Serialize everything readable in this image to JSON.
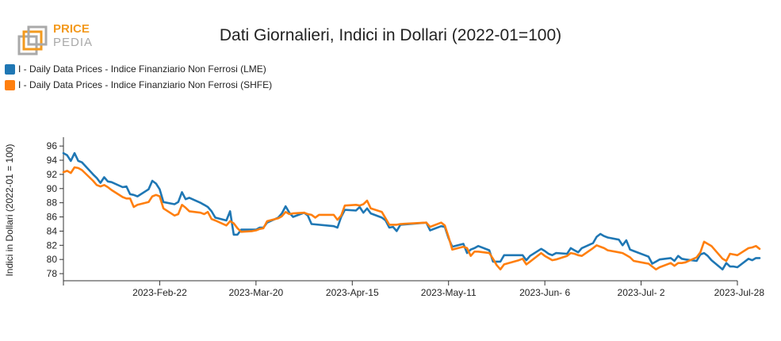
{
  "logo": {
    "line1": "PRICE",
    "line2": "PEDIA"
  },
  "colors": {
    "lme": "#1f77b4",
    "shfe": "#ff7f0e",
    "logo_orange": "#f39a1e",
    "logo_gray": "#a9a9a9"
  },
  "chart_data": {
    "type": "line",
    "title": "Dati Giornalieri, Indici in Dollari (2022-01=100)",
    "ylabel": "Indici in Dollari (2022-01 = 100)",
    "xlabel": "",
    "ylim": [
      77,
      96.8
    ],
    "yticks": [
      78,
      80,
      82,
      84,
      86,
      88,
      90,
      92,
      94,
      96
    ],
    "x_range": [
      "2023-01-27",
      "2023-07-28"
    ],
    "xticks": [
      {
        "date": "2023-02-22",
        "label": "2023-Feb-22"
      },
      {
        "date": "2023-03-20",
        "label": "2023-Mar-20"
      },
      {
        "date": "2023-04-15",
        "label": "2023-Apr-15"
      },
      {
        "date": "2023-05-11",
        "label": "2023-May-11"
      },
      {
        "date": "2023-06-06",
        "label": "2023-Jun- 6"
      },
      {
        "date": "2023-07-02",
        "label": "2023-Jul- 2"
      },
      {
        "date": "2023-07-28",
        "label": "2023-Jul-28"
      }
    ],
    "legend_position": "top-left",
    "series": [
      {
        "name": "I - Daily Data Prices - Indice Finanziario Non Ferrosi (LME)",
        "color": "#1f77b4",
        "points": [
          [
            "2023-01-27",
            95.0
          ],
          [
            "2023-01-28",
            94.7
          ],
          [
            "2023-01-29",
            93.9
          ],
          [
            "2023-01-30",
            95.0
          ],
          [
            "2023-01-31",
            93.9
          ],
          [
            "2023-02-01",
            93.7
          ],
          [
            "2023-02-04",
            92.0
          ],
          [
            "2023-02-05",
            91.5
          ],
          [
            "2023-02-06",
            90.8
          ],
          [
            "2023-02-07",
            91.6
          ],
          [
            "2023-02-08",
            91.0
          ],
          [
            "2023-02-09",
            90.9
          ],
          [
            "2023-02-12",
            90.2
          ],
          [
            "2023-02-13",
            90.3
          ],
          [
            "2023-02-14",
            89.2
          ],
          [
            "2023-02-15",
            89.1
          ],
          [
            "2023-02-16",
            88.9
          ],
          [
            "2023-02-19",
            89.9
          ],
          [
            "2023-02-20",
            91.1
          ],
          [
            "2023-02-21",
            90.7
          ],
          [
            "2023-02-22",
            89.9
          ],
          [
            "2023-02-23",
            88.1
          ],
          [
            "2023-02-26",
            87.8
          ],
          [
            "2023-02-27",
            88.1
          ],
          [
            "2023-02-28",
            89.5
          ],
          [
            "2023-03-01",
            88.5
          ],
          [
            "2023-03-02",
            88.7
          ],
          [
            "2023-03-05",
            88.0
          ],
          [
            "2023-03-06",
            87.7
          ],
          [
            "2023-03-07",
            87.4
          ],
          [
            "2023-03-08",
            86.8
          ],
          [
            "2023-03-09",
            85.9
          ],
          [
            "2023-03-12",
            85.5
          ],
          [
            "2023-03-13",
            86.8
          ],
          [
            "2023-03-14",
            83.5
          ],
          [
            "2023-03-15",
            83.5
          ],
          [
            "2023-03-16",
            84.2
          ],
          [
            "2023-03-19",
            84.2
          ],
          [
            "2023-03-20",
            84.2
          ],
          [
            "2023-03-21",
            84.5
          ],
          [
            "2023-03-22",
            84.5
          ],
          [
            "2023-03-23",
            85.2
          ],
          [
            "2023-03-26",
            85.9
          ],
          [
            "2023-03-27",
            86.5
          ],
          [
            "2023-03-28",
            87.5
          ],
          [
            "2023-03-29",
            86.6
          ],
          [
            "2023-03-30",
            86.0
          ],
          [
            "2023-04-02",
            86.6
          ],
          [
            "2023-04-03",
            86.2
          ],
          [
            "2023-04-04",
            85.0
          ],
          [
            "2023-04-10",
            84.7
          ],
          [
            "2023-04-11",
            84.5
          ],
          [
            "2023-04-12",
            86.0
          ],
          [
            "2023-04-13",
            87.0
          ],
          [
            "2023-04-16",
            86.9
          ],
          [
            "2023-04-17",
            87.4
          ],
          [
            "2023-04-18",
            86.6
          ],
          [
            "2023-04-19",
            87.2
          ],
          [
            "2023-04-20",
            86.5
          ],
          [
            "2023-04-23",
            85.9
          ],
          [
            "2023-04-24",
            85.5
          ],
          [
            "2023-04-25",
            84.5
          ],
          [
            "2023-04-26",
            84.6
          ],
          [
            "2023-04-27",
            84.0
          ],
          [
            "2023-04-28",
            84.9
          ],
          [
            "2023-05-05",
            85.2
          ],
          [
            "2023-05-06",
            84.1
          ],
          [
            "2023-05-09",
            84.7
          ],
          [
            "2023-05-10",
            84.6
          ],
          [
            "2023-05-11",
            83.0
          ],
          [
            "2023-05-12",
            81.8
          ],
          [
            "2023-05-15",
            82.2
          ],
          [
            "2023-05-16",
            80.9
          ],
          [
            "2023-05-17",
            81.4
          ],
          [
            "2023-05-18",
            81.6
          ],
          [
            "2023-05-19",
            81.9
          ],
          [
            "2023-05-22",
            81.3
          ],
          [
            "2023-05-23",
            79.7
          ],
          [
            "2023-05-24",
            79.7
          ],
          [
            "2023-05-25",
            79.7
          ],
          [
            "2023-05-26",
            80.6
          ],
          [
            "2023-05-30",
            80.6
          ],
          [
            "2023-05-31",
            80.6
          ],
          [
            "2023-06-01",
            79.9
          ],
          [
            "2023-06-02",
            80.5
          ],
          [
            "2023-06-05",
            81.5
          ],
          [
            "2023-06-06",
            81.2
          ],
          [
            "2023-06-07",
            80.8
          ],
          [
            "2023-06-08",
            80.6
          ],
          [
            "2023-06-09",
            80.9
          ],
          [
            "2023-06-12",
            80.8
          ],
          [
            "2023-06-13",
            81.6
          ],
          [
            "2023-06-14",
            81.3
          ],
          [
            "2023-06-15",
            81.0
          ],
          [
            "2023-06-16",
            81.6
          ],
          [
            "2023-06-19",
            82.3
          ],
          [
            "2023-06-20",
            83.2
          ],
          [
            "2023-06-21",
            83.6
          ],
          [
            "2023-06-22",
            83.3
          ],
          [
            "2023-06-23",
            83.1
          ],
          [
            "2023-06-26",
            82.8
          ],
          [
            "2023-06-27",
            82.0
          ],
          [
            "2023-06-28",
            82.7
          ],
          [
            "2023-06-29",
            81.4
          ],
          [
            "2023-06-30",
            81.2
          ],
          [
            "2023-07-03",
            80.6
          ],
          [
            "2023-07-04",
            80.4
          ],
          [
            "2023-07-05",
            79.4
          ],
          [
            "2023-07-06",
            79.7
          ],
          [
            "2023-07-07",
            80.0
          ],
          [
            "2023-07-10",
            80.2
          ],
          [
            "2023-07-11",
            79.8
          ],
          [
            "2023-07-12",
            80.5
          ],
          [
            "2023-07-13",
            80.1
          ],
          [
            "2023-07-14",
            80.0
          ],
          [
            "2023-07-17",
            79.8
          ],
          [
            "2023-07-18",
            80.7
          ],
          [
            "2023-07-19",
            80.9
          ],
          [
            "2023-07-20",
            80.5
          ],
          [
            "2023-07-21",
            79.9
          ],
          [
            "2023-07-24",
            78.6
          ],
          [
            "2023-07-25",
            79.5
          ],
          [
            "2023-07-26",
            79.0
          ],
          [
            "2023-07-27",
            79.0
          ],
          [
            "2023-07-28",
            78.9
          ],
          [
            "2023-07-31",
            80.1
          ],
          [
            "2023-08-01",
            79.9
          ],
          [
            "2023-08-02",
            80.2
          ],
          [
            "2023-08-03",
            80.2
          ]
        ]
      },
      {
        "name": "I - Daily Data Prices - Indice Finanziario Non Ferrosi (SHFE)",
        "color": "#ff7f0e",
        "points": [
          [
            "2023-01-27",
            92.3
          ],
          [
            "2023-01-28",
            92.5
          ],
          [
            "2023-01-29",
            92.2
          ],
          [
            "2023-01-30",
            93.0
          ],
          [
            "2023-01-31",
            92.9
          ],
          [
            "2023-02-01",
            92.6
          ],
          [
            "2023-02-04",
            91.1
          ],
          [
            "2023-02-05",
            90.5
          ],
          [
            "2023-02-06",
            90.3
          ],
          [
            "2023-02-07",
            90.5
          ],
          [
            "2023-02-08",
            90.2
          ],
          [
            "2023-02-09",
            89.8
          ],
          [
            "2023-02-12",
            88.8
          ],
          [
            "2023-02-13",
            88.6
          ],
          [
            "2023-02-14",
            88.6
          ],
          [
            "2023-02-15",
            87.4
          ],
          [
            "2023-02-16",
            87.7
          ],
          [
            "2023-02-19",
            88.1
          ],
          [
            "2023-02-20",
            88.9
          ],
          [
            "2023-02-21",
            89.1
          ],
          [
            "2023-02-22",
            88.9
          ],
          [
            "2023-02-23",
            87.2
          ],
          [
            "2023-02-26",
            86.2
          ],
          [
            "2023-02-27",
            86.4
          ],
          [
            "2023-02-28",
            87.7
          ],
          [
            "2023-03-01",
            87.3
          ],
          [
            "2023-03-02",
            86.8
          ],
          [
            "2023-03-05",
            86.6
          ],
          [
            "2023-03-06",
            86.4
          ],
          [
            "2023-03-07",
            86.7
          ],
          [
            "2023-03-08",
            85.7
          ],
          [
            "2023-03-09",
            85.5
          ],
          [
            "2023-03-12",
            84.8
          ],
          [
            "2023-03-13",
            85.4
          ],
          [
            "2023-03-14",
            85.1
          ],
          [
            "2023-03-15",
            84.4
          ],
          [
            "2023-03-16",
            83.9
          ],
          [
            "2023-03-19",
            84.0
          ],
          [
            "2023-03-20",
            84.1
          ],
          [
            "2023-03-21",
            84.3
          ],
          [
            "2023-03-22",
            84.4
          ],
          [
            "2023-03-23",
            85.4
          ],
          [
            "2023-03-26",
            85.8
          ],
          [
            "2023-03-27",
            86.1
          ],
          [
            "2023-03-28",
            86.7
          ],
          [
            "2023-03-29",
            86.4
          ],
          [
            "2023-03-30",
            86.5
          ],
          [
            "2023-04-02",
            86.6
          ],
          [
            "2023-04-03",
            86.4
          ],
          [
            "2023-04-04",
            86.3
          ],
          [
            "2023-04-05",
            85.9
          ],
          [
            "2023-04-06",
            86.3
          ],
          [
            "2023-04-10",
            86.3
          ],
          [
            "2023-04-11",
            85.6
          ],
          [
            "2023-04-12",
            86.2
          ],
          [
            "2023-04-13",
            87.6
          ],
          [
            "2023-04-16",
            87.7
          ],
          [
            "2023-04-17",
            87.6
          ],
          [
            "2023-04-18",
            87.8
          ],
          [
            "2023-04-19",
            88.3
          ],
          [
            "2023-04-20",
            87.2
          ],
          [
            "2023-04-23",
            86.7
          ],
          [
            "2023-04-24",
            85.8
          ],
          [
            "2023-04-25",
            84.9
          ],
          [
            "2023-04-26",
            84.9
          ],
          [
            "2023-04-27",
            84.9
          ],
          [
            "2023-04-28",
            85.0
          ],
          [
            "2023-05-05",
            85.2
          ],
          [
            "2023-05-06",
            84.6
          ],
          [
            "2023-05-09",
            85.2
          ],
          [
            "2023-05-10",
            84.8
          ],
          [
            "2023-05-11",
            83.2
          ],
          [
            "2023-05-12",
            81.4
          ],
          [
            "2023-05-15",
            81.8
          ],
          [
            "2023-05-16",
            81.6
          ],
          [
            "2023-05-17",
            80.5
          ],
          [
            "2023-05-18",
            81.1
          ],
          [
            "2023-05-19",
            81.1
          ],
          [
            "2023-05-22",
            80.9
          ],
          [
            "2023-05-23",
            80.1
          ],
          [
            "2023-05-24",
            79.2
          ],
          [
            "2023-05-25",
            78.6
          ],
          [
            "2023-05-26",
            79.3
          ],
          [
            "2023-05-30",
            79.9
          ],
          [
            "2023-05-31",
            80.1
          ],
          [
            "2023-06-01",
            79.3
          ],
          [
            "2023-06-02",
            79.7
          ],
          [
            "2023-06-05",
            80.9
          ],
          [
            "2023-06-06",
            80.5
          ],
          [
            "2023-06-07",
            80.2
          ],
          [
            "2023-06-08",
            79.9
          ],
          [
            "2023-06-09",
            80.0
          ],
          [
            "2023-06-12",
            80.5
          ],
          [
            "2023-06-13",
            80.9
          ],
          [
            "2023-06-14",
            80.8
          ],
          [
            "2023-06-15",
            80.6
          ],
          [
            "2023-06-16",
            80.5
          ],
          [
            "2023-06-19",
            81.6
          ],
          [
            "2023-06-20",
            82.0
          ],
          [
            "2023-06-21",
            81.8
          ],
          [
            "2023-06-22",
            81.6
          ],
          [
            "2023-06-23",
            81.3
          ],
          [
            "2023-06-26",
            81.0
          ],
          [
            "2023-06-27",
            80.9
          ],
          [
            "2023-06-28",
            80.6
          ],
          [
            "2023-06-29",
            80.3
          ],
          [
            "2023-06-30",
            79.8
          ],
          [
            "2023-07-03",
            79.5
          ],
          [
            "2023-07-04",
            79.4
          ],
          [
            "2023-07-05",
            79.0
          ],
          [
            "2023-07-06",
            78.6
          ],
          [
            "2023-07-07",
            78.9
          ],
          [
            "2023-07-10",
            79.5
          ],
          [
            "2023-07-11",
            79.1
          ],
          [
            "2023-07-12",
            79.5
          ],
          [
            "2023-07-13",
            79.5
          ],
          [
            "2023-07-14",
            79.6
          ],
          [
            "2023-07-17",
            80.3
          ],
          [
            "2023-07-18",
            81.0
          ],
          [
            "2023-07-19",
            82.5
          ],
          [
            "2023-07-20",
            82.2
          ],
          [
            "2023-07-21",
            81.9
          ],
          [
            "2023-07-24",
            80.1
          ],
          [
            "2023-07-25",
            79.8
          ],
          [
            "2023-07-26",
            80.8
          ],
          [
            "2023-07-27",
            80.7
          ],
          [
            "2023-07-28",
            80.6
          ],
          [
            "2023-07-31",
            81.6
          ],
          [
            "2023-08-01",
            81.7
          ],
          [
            "2023-08-02",
            81.9
          ],
          [
            "2023-08-03",
            81.5
          ]
        ]
      }
    ]
  }
}
